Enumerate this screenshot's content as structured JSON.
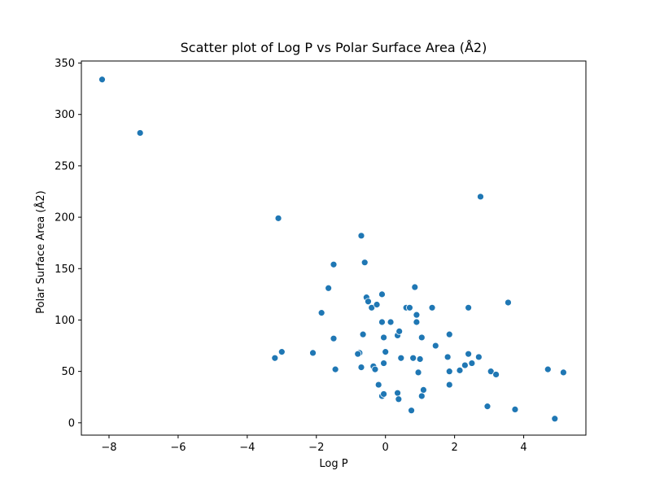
{
  "chart_data": {
    "type": "scatter",
    "title": "Scatter plot of Log P vs Polar Surface Area (Å2)",
    "xlabel": "Log P",
    "ylabel": "Polar Surface Area (Å2)",
    "xlim": [
      -8.8,
      5.8
    ],
    "ylim": [
      -12,
      352
    ],
    "xticks": [
      -8,
      -6,
      -4,
      -2,
      0,
      2,
      4
    ],
    "yticks": [
      0,
      50,
      100,
      150,
      200,
      250,
      300,
      350
    ],
    "xtick_labels": [
      "−8",
      "−6",
      "−4",
      "−2",
      "0",
      "2",
      "4"
    ],
    "ytick_labels": [
      "0",
      "50",
      "100",
      "150",
      "200",
      "250",
      "300",
      "350"
    ],
    "grid": false,
    "point_color": "#1f77b4",
    "points": [
      {
        "x": -8.2,
        "y": 334
      },
      {
        "x": -7.1,
        "y": 282
      },
      {
        "x": -3.1,
        "y": 199
      },
      {
        "x": -3.0,
        "y": 69
      },
      {
        "x": -3.2,
        "y": 63
      },
      {
        "x": -2.1,
        "y": 68
      },
      {
        "x": -1.85,
        "y": 107
      },
      {
        "x": -1.65,
        "y": 131
      },
      {
        "x": -1.5,
        "y": 154
      },
      {
        "x": -1.5,
        "y": 82
      },
      {
        "x": -1.45,
        "y": 52
      },
      {
        "x": -0.7,
        "y": 182
      },
      {
        "x": -0.6,
        "y": 156
      },
      {
        "x": -0.55,
        "y": 122
      },
      {
        "x": -0.5,
        "y": 118
      },
      {
        "x": -0.4,
        "y": 112
      },
      {
        "x": -0.25,
        "y": 115
      },
      {
        "x": -0.1,
        "y": 125
      },
      {
        "x": -0.1,
        "y": 98
      },
      {
        "x": -0.65,
        "y": 86
      },
      {
        "x": -0.75,
        "y": 68
      },
      {
        "x": -0.8,
        "y": 67
      },
      {
        "x": -0.7,
        "y": 54
      },
      {
        "x": -0.35,
        "y": 55
      },
      {
        "x": -0.3,
        "y": 52
      },
      {
        "x": -0.05,
        "y": 83
      },
      {
        "x": 0.0,
        "y": 69
      },
      {
        "x": -0.05,
        "y": 58
      },
      {
        "x": -0.2,
        "y": 37
      },
      {
        "x": -0.1,
        "y": 26
      },
      {
        "x": -0.05,
        "y": 28
      },
      {
        "x": 0.15,
        "y": 98
      },
      {
        "x": 0.35,
        "y": 85
      },
      {
        "x": 0.4,
        "y": 89
      },
      {
        "x": 0.45,
        "y": 63
      },
      {
        "x": 0.35,
        "y": 29
      },
      {
        "x": 0.38,
        "y": 23
      },
      {
        "x": 0.6,
        "y": 112
      },
      {
        "x": 0.7,
        "y": 112
      },
      {
        "x": 0.75,
        "y": 12
      },
      {
        "x": 0.85,
        "y": 132
      },
      {
        "x": 0.9,
        "y": 105
      },
      {
        "x": 0.9,
        "y": 98
      },
      {
        "x": 0.8,
        "y": 63
      },
      {
        "x": 1.0,
        "y": 62
      },
      {
        "x": 0.95,
        "y": 49
      },
      {
        "x": 1.05,
        "y": 83
      },
      {
        "x": 1.1,
        "y": 32
      },
      {
        "x": 1.05,
        "y": 26
      },
      {
        "x": 1.35,
        "y": 112
      },
      {
        "x": 1.45,
        "y": 75
      },
      {
        "x": 1.8,
        "y": 64
      },
      {
        "x": 1.85,
        "y": 86
      },
      {
        "x": 1.85,
        "y": 50
      },
      {
        "x": 1.85,
        "y": 37
      },
      {
        "x": 2.15,
        "y": 51
      },
      {
        "x": 2.3,
        "y": 56
      },
      {
        "x": 2.4,
        "y": 112
      },
      {
        "x": 2.4,
        "y": 67
      },
      {
        "x": 2.5,
        "y": 58
      },
      {
        "x": 2.7,
        "y": 64
      },
      {
        "x": 2.75,
        "y": 220
      },
      {
        "x": 2.95,
        "y": 16
      },
      {
        "x": 3.05,
        "y": 50
      },
      {
        "x": 3.2,
        "y": 47
      },
      {
        "x": 3.55,
        "y": 117
      },
      {
        "x": 3.75,
        "y": 13
      },
      {
        "x": 4.7,
        "y": 52
      },
      {
        "x": 4.9,
        "y": 4
      },
      {
        "x": 5.15,
        "y": 49
      }
    ]
  }
}
